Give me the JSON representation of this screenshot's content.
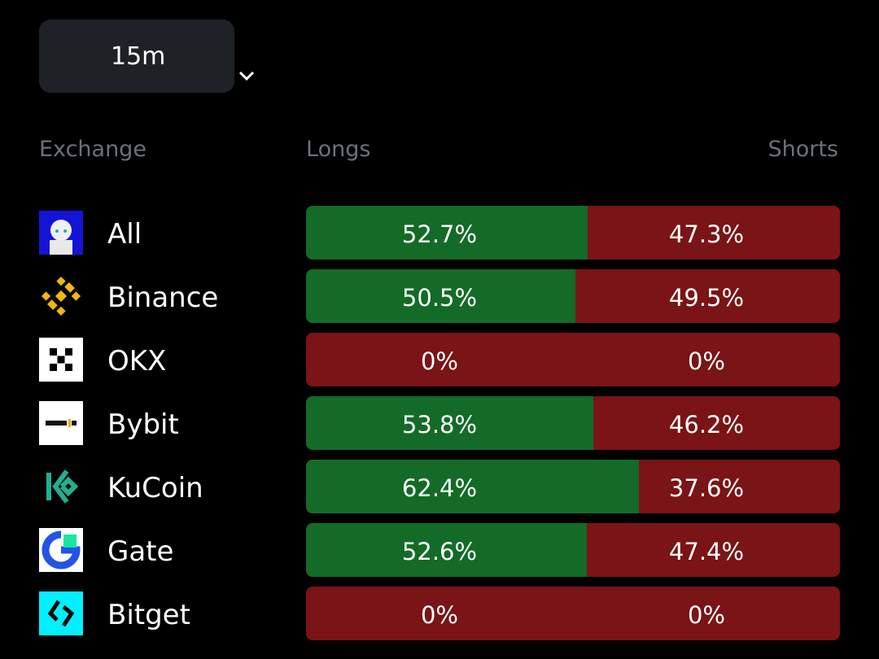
{
  "timeframe": "15m",
  "header": {
    "exchange": "Exchange",
    "longs": "Longs",
    "shorts": "Shorts"
  },
  "rows": [
    {
      "exchange": "All",
      "longs": 52.7,
      "longs_label": "52.7%",
      "shorts": 47.3,
      "shorts_label": "47.3%"
    },
    {
      "exchange": "Binance",
      "longs": 50.5,
      "longs_label": "50.5%",
      "shorts": 49.5,
      "shorts_label": "49.5%"
    },
    {
      "exchange": "OKX",
      "longs": 0,
      "longs_label": "0%",
      "shorts": 0,
      "shorts_label": "0%"
    },
    {
      "exchange": "Bybit",
      "longs": 53.8,
      "longs_label": "53.8%",
      "shorts": 46.2,
      "shorts_label": "46.2%"
    },
    {
      "exchange": "KuCoin",
      "longs": 62.4,
      "longs_label": "62.4%",
      "shorts": 37.6,
      "shorts_label": "37.6%"
    },
    {
      "exchange": "Gate",
      "longs": 52.6,
      "longs_label": "52.6%",
      "shorts": 47.4,
      "shorts_label": "47.4%"
    },
    {
      "exchange": "Bitget",
      "longs": 0,
      "longs_label": "0%",
      "shorts": 0,
      "shorts_label": "0%"
    }
  ]
}
